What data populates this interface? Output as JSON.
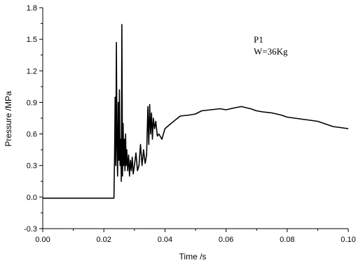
{
  "chart_data": {
    "type": "line",
    "xlabel": "Time /s",
    "ylabel": "Pressure /MPa",
    "xlim": [
      0.0,
      0.1
    ],
    "ylim": [
      -0.3,
      1.8
    ],
    "xticks": [
      "0.00",
      "0.02",
      "0.04",
      "0.06",
      "0.08",
      "0.10"
    ],
    "yticks": [
      "-0.3",
      "0.0",
      "0.3",
      "0.6",
      "0.9",
      "1.2",
      "1.5",
      "1.8"
    ],
    "grid": false,
    "annotations": [
      "P1",
      "W=36Kg"
    ],
    "series": [
      {
        "x": [
          0.0,
          0.01,
          0.02,
          0.0233,
          0.0235,
          0.0237,
          0.0239,
          0.0241,
          0.0243,
          0.0245,
          0.0247,
          0.0249,
          0.0251,
          0.0253,
          0.0255,
          0.0257,
          0.0259,
          0.0261,
          0.0263,
          0.0265,
          0.0267,
          0.0269,
          0.0271,
          0.0273,
          0.0275,
          0.0278,
          0.0281,
          0.0284,
          0.0287,
          0.029,
          0.0293,
          0.0296,
          0.03,
          0.0305,
          0.031,
          0.0315,
          0.032,
          0.0325,
          0.033,
          0.0335,
          0.034,
          0.0344,
          0.0347,
          0.035,
          0.0353,
          0.0356,
          0.0359,
          0.0362,
          0.0366,
          0.037,
          0.0375,
          0.038,
          0.039,
          0.04,
          0.042,
          0.045,
          0.048,
          0.05,
          0.052,
          0.055,
          0.058,
          0.06,
          0.063,
          0.065,
          0.068,
          0.07,
          0.072,
          0.075,
          0.078,
          0.08,
          0.085,
          0.09,
          0.095,
          0.1
        ],
        "values": [
          -0.01,
          -0.01,
          -0.01,
          -0.01,
          0.4,
          0.95,
          0.3,
          1.47,
          0.5,
          0.2,
          0.9,
          0.35,
          1.02,
          0.3,
          0.55,
          0.15,
          1.64,
          0.2,
          0.7,
          0.3,
          0.55,
          0.25,
          0.6,
          0.3,
          0.45,
          0.25,
          0.4,
          0.2,
          0.35,
          0.25,
          0.38,
          0.22,
          0.3,
          0.42,
          0.25,
          0.3,
          0.5,
          0.3,
          0.45,
          0.32,
          0.4,
          0.86,
          0.5,
          0.88,
          0.6,
          0.8,
          0.55,
          0.75,
          0.65,
          0.72,
          0.58,
          0.6,
          0.55,
          0.65,
          0.7,
          0.77,
          0.78,
          0.79,
          0.82,
          0.83,
          0.84,
          0.83,
          0.85,
          0.86,
          0.84,
          0.82,
          0.81,
          0.8,
          0.78,
          0.76,
          0.74,
          0.72,
          0.67,
          0.65
        ]
      }
    ]
  }
}
